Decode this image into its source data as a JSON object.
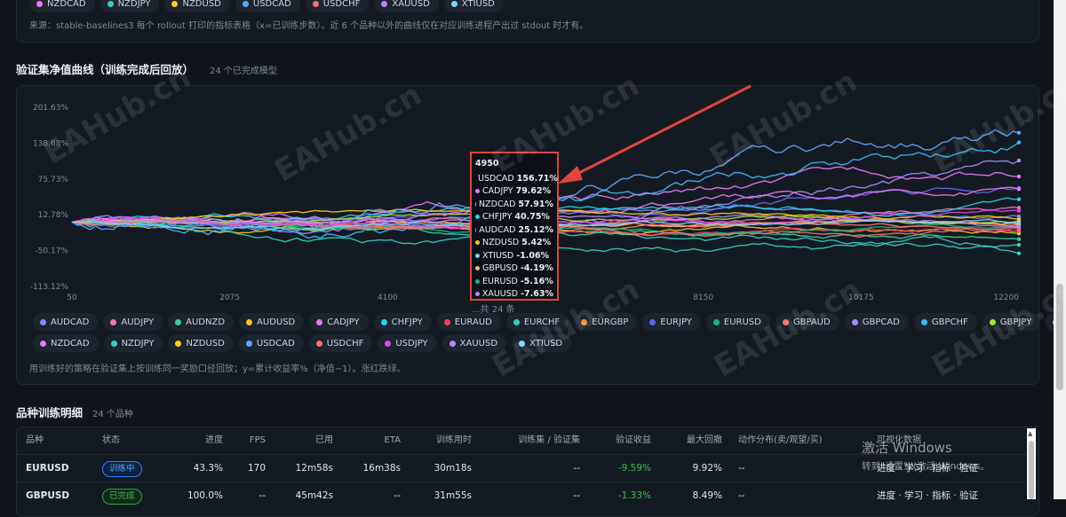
{
  "top_pills": [
    {
      "label": "NZDCAD",
      "color": "#e879f9"
    },
    {
      "label": "NZDJPY",
      "color": "#2dd4bf"
    },
    {
      "label": "NZDUSD",
      "color": "#facc15"
    },
    {
      "label": "USDCAD",
      "color": "#60a5fa"
    },
    {
      "label": "USDCHF",
      "color": "#f87171"
    },
    {
      "label": "XAUUSD",
      "color": "#c084fc"
    },
    {
      "label": "XTIUSD",
      "color": "#7dd3fc"
    }
  ],
  "top_note": "来源：stable-baselines3 每个 rollout 打印的指标表格（x=已训练步数）。近 6 个品种以外的曲线仅在对应训练进程产出过 stdout 时才有。",
  "section1": {
    "title": "验证集净值曲线（训练完成后回放）",
    "subtitle": "24 个已完成模型"
  },
  "chart_data": {
    "type": "line",
    "x_ticks": [
      "50",
      "2075",
      "4100",
      "6125",
      "8150",
      "10175",
      "12200"
    ],
    "y_ticks": [
      "201.63%",
      "138.68%",
      "75.73%",
      "12.78%",
      "-50.17%",
      "-113.12%"
    ],
    "xlim": [
      50,
      12200
    ],
    "ylim": [
      -113.12,
      201.63
    ],
    "grid": false,
    "legend_position": "bottom",
    "series": [
      {
        "name": "AUDCAD",
        "color": "#818cf8",
        "final": 10
      },
      {
        "name": "AUDJPY",
        "color": "#f472b6",
        "final": 25
      },
      {
        "name": "AUDNZD",
        "color": "#34d399",
        "final": -30
      },
      {
        "name": "AUDUSD",
        "color": "#fbbf24",
        "final": -20
      },
      {
        "name": "CADJPY",
        "color": "#e879f9",
        "final": 80
      },
      {
        "name": "CHFJPY",
        "color": "#22d3ee",
        "final": 40
      },
      {
        "name": "EURAUD",
        "color": "#f43f5e",
        "final": -12
      },
      {
        "name": "EURCHF",
        "color": "#2dd4bf",
        "final": -40
      },
      {
        "name": "EURGBP",
        "color": "#fb923c",
        "final": -5
      },
      {
        "name": "EURJPY",
        "color": "#6366f1",
        "final": 60
      },
      {
        "name": "EURUSD",
        "color": "#10b981",
        "final": -8
      },
      {
        "name": "GBPAUD",
        "color": "#f87171",
        "final": -15
      },
      {
        "name": "GBPCAD",
        "color": "#a78bfa",
        "final": 108
      },
      {
        "name": "GBPCHF",
        "color": "#38bdf8",
        "final": 140
      },
      {
        "name": "GBPJPY",
        "color": "#a3e635",
        "final": 2
      },
      {
        "name": "GBPUSD",
        "color": "#fdba74",
        "final": -4
      },
      {
        "name": "NZDCAD",
        "color": "#e879f9",
        "final": 58
      },
      {
        "name": "NZDJPY",
        "color": "#2dd4bf",
        "final": -55
      },
      {
        "name": "NZDUSD",
        "color": "#facc15",
        "final": 5
      },
      {
        "name": "USDCAD",
        "color": "#60a5fa",
        "final": 157
      },
      {
        "name": "USDCHF",
        "color": "#f87171",
        "final": -10
      },
      {
        "name": "USDJPY",
        "color": "#d946ef",
        "final": 20
      },
      {
        "name": "XAUUSD",
        "color": "#c084fc",
        "final": -8
      },
      {
        "name": "XTIUSD",
        "color": "#7dd3fc",
        "final": -1
      }
    ]
  },
  "tooltip": {
    "step": "4950",
    "rows": [
      {
        "name": "USDCAD",
        "value": "156.71%",
        "color": "#60a5fa"
      },
      {
        "name": "CADJPY",
        "value": "79.62%",
        "color": "#e879f9"
      },
      {
        "name": "NZDCAD",
        "value": "57.91%",
        "color": "#e879f9"
      },
      {
        "name": "CHFJPY",
        "value": "40.75%",
        "color": "#22d3ee"
      },
      {
        "name": "AUDCAD",
        "value": "25.12%",
        "color": "#818cf8"
      },
      {
        "name": "NZDUSD",
        "value": "5.42%",
        "color": "#facc15"
      },
      {
        "name": "XTIUSD",
        "value": "-1.06%",
        "color": "#7dd3fc"
      },
      {
        "name": "GBPUSD",
        "value": "-4.19%",
        "color": "#fdba74"
      },
      {
        "name": "EURUSD",
        "value": "-5.16%",
        "color": "#10b981"
      },
      {
        "name": "XAUUSD",
        "value": "-7.63%",
        "color": "#c084fc"
      }
    ]
  },
  "total_text": "...共 24 条",
  "chart_note": "用训练好的策略在验证集上按训练同一奖励口径回放；y=累计收益率%（净值−1）。涨红跌绿。",
  "section2": {
    "title": "品种训练明细",
    "subtitle": "24 个品种"
  },
  "table": {
    "headers": [
      "品种",
      "状态",
      "进度",
      "FPS",
      "已用",
      "ETA",
      "训练用时",
      "训练集 / 验证集",
      "验证收益",
      "最大回撤",
      "动作分布(卖/观望/买)",
      "可视化数据"
    ],
    "rows": [
      {
        "symbol": "EURUSD",
        "status": "训练中",
        "status_kind": "train",
        "progress": "43.3%",
        "fps": "170",
        "elapsed": "12m58s",
        "eta": "16m38s",
        "train_time": "30m18s",
        "split": "--",
        "ret": "-9.59%",
        "dd": "9.92%",
        "actions": "--",
        "viz": "进度 · 学习 · 指标 · 验证"
      },
      {
        "symbol": "GBPUSD",
        "status": "已完成",
        "status_kind": "done",
        "progress": "100.0%",
        "fps": "--",
        "elapsed": "45m42s",
        "eta": "--",
        "train_time": "31m55s",
        "split": "--",
        "ret": "-1.33%",
        "dd": "8.49%",
        "actions": "--",
        "viz": "进度 · 学习 · 指标 · 验证"
      }
    ]
  },
  "watermark": "EAHub.cn",
  "windows": {
    "line1": "激活 Windows",
    "line2": "转到\"设置\"以激活 Windows。"
  }
}
